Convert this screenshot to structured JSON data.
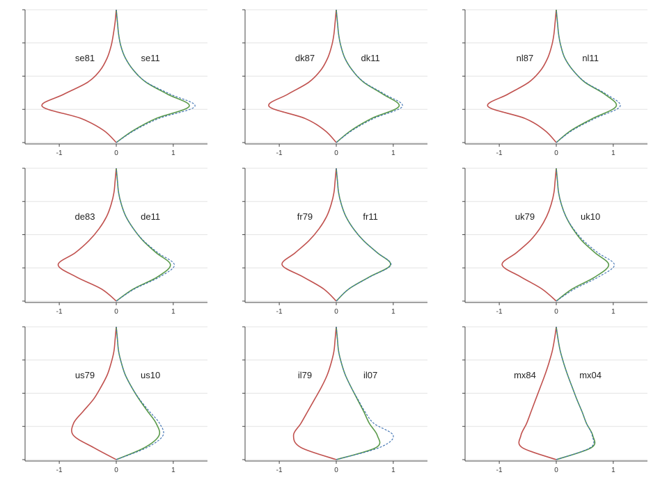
{
  "colors": {
    "left_curve": "#c0504d",
    "right_curve_solid": "#5a9a4a",
    "right_curve_dashed": "#3b6fb0",
    "axis": "#444444",
    "grid": "#e4e4e4"
  },
  "chart_data": [
    {
      "type": "line",
      "left_label": "se81",
      "right_label": "se11",
      "xticks": [
        -1,
        0,
        1
      ],
      "xlim": [
        -1.6,
        1.6
      ],
      "ylim": [
        0,
        4.0
      ],
      "grid": true,
      "series": [
        {
          "side": "left",
          "style": "solid",
          "values": [
            0.0,
            0.22,
            0.62,
            1.3,
            0.92,
            0.5,
            0.28,
            0.16,
            0.09,
            0.05,
            0.02,
            0.0
          ]
        },
        {
          "side": "right",
          "style": "solid",
          "values": [
            0.0,
            0.3,
            0.7,
            1.28,
            0.9,
            0.52,
            0.3,
            0.16,
            0.08,
            0.04,
            0.02,
            0.0
          ]
        },
        {
          "side": "right",
          "style": "dashed",
          "values": [
            0.0,
            0.32,
            0.75,
            1.38,
            0.95,
            0.53,
            0.3,
            0.16,
            0.08,
            0.04,
            0.02,
            0.0
          ]
        }
      ]
    },
    {
      "type": "line",
      "left_label": "dk87",
      "right_label": "dk11",
      "xticks": [
        -1,
        0,
        1
      ],
      "xlim": [
        -1.6,
        1.6
      ],
      "ylim": [
        0,
        4.0
      ],
      "grid": true,
      "series": [
        {
          "side": "left",
          "style": "solid",
          "values": [
            0.0,
            0.2,
            0.55,
            1.18,
            0.85,
            0.48,
            0.27,
            0.15,
            0.08,
            0.04,
            0.02,
            0.0
          ]
        },
        {
          "side": "right",
          "style": "solid",
          "values": [
            0.0,
            0.26,
            0.62,
            1.1,
            0.82,
            0.48,
            0.28,
            0.15,
            0.08,
            0.04,
            0.02,
            0.0
          ]
        },
        {
          "side": "right",
          "style": "dashed",
          "values": [
            0.0,
            0.28,
            0.66,
            1.16,
            0.85,
            0.49,
            0.28,
            0.15,
            0.08,
            0.04,
            0.02,
            0.0
          ]
        }
      ]
    },
    {
      "type": "line",
      "left_label": "nl87",
      "right_label": "nl11",
      "xticks": [
        -1,
        0,
        1
      ],
      "xlim": [
        -1.6,
        1.6
      ],
      "ylim": [
        0,
        4.0
      ],
      "grid": true,
      "series": [
        {
          "side": "left",
          "style": "solid",
          "values": [
            0.0,
            0.2,
            0.55,
            1.2,
            0.85,
            0.48,
            0.27,
            0.15,
            0.08,
            0.04,
            0.02,
            0.0
          ]
        },
        {
          "side": "right",
          "style": "solid",
          "values": [
            0.0,
            0.26,
            0.64,
            1.05,
            0.85,
            0.5,
            0.29,
            0.15,
            0.08,
            0.04,
            0.02,
            0.0
          ]
        },
        {
          "side": "right",
          "style": "dashed",
          "values": [
            0.0,
            0.28,
            0.68,
            1.12,
            0.88,
            0.51,
            0.29,
            0.15,
            0.08,
            0.04,
            0.02,
            0.0
          ]
        }
      ]
    },
    {
      "type": "line",
      "left_label": "de83",
      "right_label": "de11",
      "xticks": [
        -1,
        0,
        1
      ],
      "xlim": [
        -1.6,
        1.6
      ],
      "ylim": [
        0,
        4.0
      ],
      "grid": true,
      "series": [
        {
          "side": "left",
          "style": "solid",
          "values": [
            0.0,
            0.26,
            0.7,
            1.02,
            0.72,
            0.48,
            0.3,
            0.17,
            0.09,
            0.04,
            0.02,
            0.0
          ]
        },
        {
          "side": "right",
          "style": "solid",
          "values": [
            0.0,
            0.3,
            0.72,
            0.95,
            0.7,
            0.47,
            0.3,
            0.17,
            0.09,
            0.04,
            0.02,
            0.0
          ]
        },
        {
          "side": "right",
          "style": "dashed",
          "values": [
            0.0,
            0.32,
            0.76,
            1.02,
            0.73,
            0.48,
            0.3,
            0.17,
            0.09,
            0.04,
            0.02,
            0.0
          ]
        }
      ]
    },
    {
      "type": "line",
      "left_label": "fr79",
      "right_label": "fr11",
      "xticks": [
        -1,
        0,
        1
      ],
      "xlim": [
        -1.6,
        1.6
      ],
      "ylim": [
        0,
        4.0
      ],
      "grid": true,
      "series": [
        {
          "side": "left",
          "style": "solid",
          "values": [
            0.0,
            0.22,
            0.58,
            0.95,
            0.72,
            0.48,
            0.3,
            0.17,
            0.09,
            0.04,
            0.02,
            0.0
          ]
        },
        {
          "side": "right",
          "style": "solid",
          "values": [
            0.0,
            0.22,
            0.58,
            0.95,
            0.72,
            0.48,
            0.3,
            0.17,
            0.09,
            0.04,
            0.02,
            0.0
          ]
        },
        {
          "side": "right",
          "style": "dashed",
          "values": [
            0.0,
            0.22,
            0.59,
            0.96,
            0.72,
            0.48,
            0.3,
            0.17,
            0.09,
            0.04,
            0.02,
            0.0
          ]
        }
      ]
    },
    {
      "type": "line",
      "left_label": "uk79",
      "right_label": "uk10",
      "xticks": [
        -1,
        0,
        1
      ],
      "xlim": [
        -1.6,
        1.6
      ],
      "ylim": [
        0,
        4.0
      ],
      "grid": true,
      "series": [
        {
          "side": "left",
          "style": "solid",
          "values": [
            0.0,
            0.25,
            0.62,
            0.95,
            0.7,
            0.46,
            0.29,
            0.17,
            0.09,
            0.04,
            0.02,
            0.0
          ]
        },
        {
          "side": "right",
          "style": "solid",
          "values": [
            0.0,
            0.28,
            0.68,
            0.92,
            0.68,
            0.45,
            0.29,
            0.17,
            0.09,
            0.04,
            0.02,
            0.0
          ]
        },
        {
          "side": "right",
          "style": "dashed",
          "values": [
            0.0,
            0.32,
            0.74,
            1.02,
            0.73,
            0.48,
            0.3,
            0.17,
            0.09,
            0.04,
            0.02,
            0.0
          ]
        }
      ]
    },
    {
      "type": "line",
      "left_label": "us79",
      "right_label": "us10",
      "xticks": [
        -1,
        0,
        1
      ],
      "xlim": [
        -1.6,
        1.6
      ],
      "ylim": [
        0,
        4.0
      ],
      "grid": true,
      "series": [
        {
          "side": "left",
          "style": "solid",
          "values": [
            0.0,
            0.4,
            0.75,
            0.75,
            0.58,
            0.4,
            0.27,
            0.16,
            0.09,
            0.04,
            0.02,
            0.0
          ]
        },
        {
          "side": "right",
          "style": "solid",
          "values": [
            0.0,
            0.5,
            0.75,
            0.7,
            0.55,
            0.4,
            0.27,
            0.16,
            0.09,
            0.04,
            0.02,
            0.0
          ]
        },
        {
          "side": "right",
          "style": "dashed",
          "values": [
            0.0,
            0.54,
            0.82,
            0.76,
            0.58,
            0.41,
            0.27,
            0.16,
            0.09,
            0.04,
            0.02,
            0.0
          ]
        }
      ]
    },
    {
      "type": "line",
      "left_label": "il79",
      "right_label": "il07",
      "xticks": [
        -1,
        0,
        1
      ],
      "xlim": [
        -1.6,
        1.6
      ],
      "ylim": [
        0,
        4.0
      ],
      "grid": true,
      "series": [
        {
          "side": "left",
          "style": "solid",
          "values": [
            0.0,
            0.62,
            0.75,
            0.62,
            0.5,
            0.38,
            0.26,
            0.16,
            0.09,
            0.04,
            0.02,
            0.0
          ]
        },
        {
          "side": "right",
          "style": "solid",
          "values": [
            0.0,
            0.7,
            0.72,
            0.58,
            0.48,
            0.37,
            0.26,
            0.16,
            0.09,
            0.04,
            0.02,
            0.0
          ]
        },
        {
          "side": "right",
          "style": "dashed",
          "values": [
            0.0,
            0.76,
            1.0,
            0.66,
            0.5,
            0.38,
            0.26,
            0.16,
            0.09,
            0.04,
            0.02,
            0.0
          ]
        }
      ]
    },
    {
      "type": "line",
      "left_label": "mx84",
      "right_label": "mx04",
      "xticks": [
        -1,
        0,
        1
      ],
      "xlim": [
        -1.6,
        1.6
      ],
      "ylim": [
        0,
        4.0
      ],
      "grid": true,
      "series": [
        {
          "side": "left",
          "style": "solid",
          "values": [
            0.0,
            0.6,
            0.62,
            0.52,
            0.44,
            0.36,
            0.28,
            0.2,
            0.13,
            0.07,
            0.03,
            0.0
          ]
        },
        {
          "side": "right",
          "style": "solid",
          "values": [
            0.0,
            0.62,
            0.64,
            0.53,
            0.45,
            0.36,
            0.28,
            0.2,
            0.13,
            0.07,
            0.03,
            0.0
          ]
        },
        {
          "side": "right",
          "style": "dashed",
          "values": [
            0.0,
            0.6,
            0.63,
            0.53,
            0.45,
            0.36,
            0.28,
            0.2,
            0.13,
            0.07,
            0.03,
            0.0
          ]
        }
      ]
    }
  ]
}
